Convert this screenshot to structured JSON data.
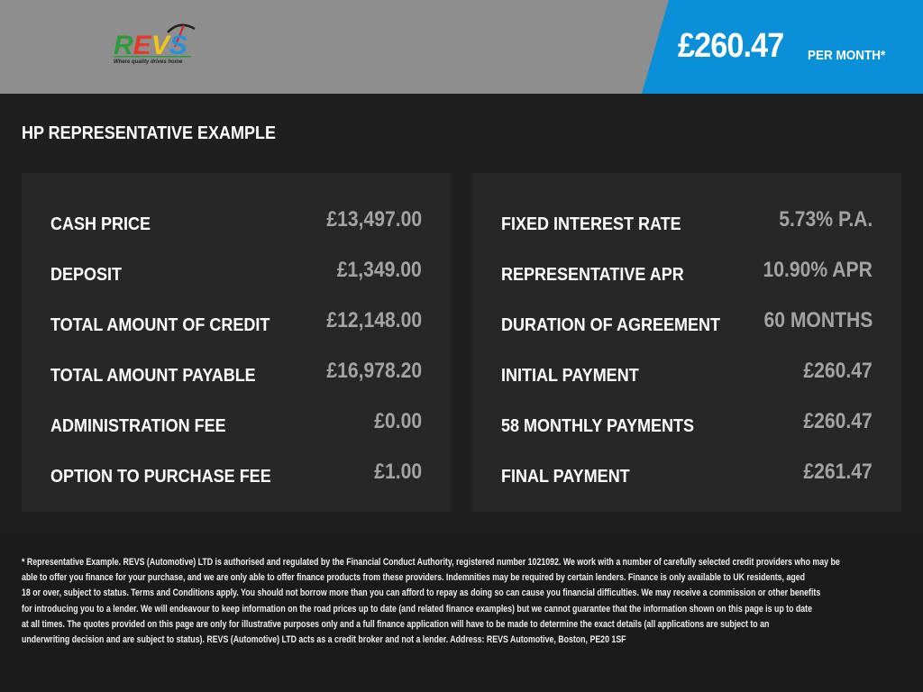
{
  "header": {
    "logo_text": "REVS",
    "logo_tagline": "Where quality drives home",
    "monthly_price": "£260.47",
    "per_month": "PER MONTH*",
    "accent": "#0a8fd9"
  },
  "title": "HP REPRESENTATIVE EXAMPLE",
  "left": [
    {
      "label": "CASH PRICE",
      "value": "£13,497.00"
    },
    {
      "label": "DEPOSIT",
      "value": "£1,349.00"
    },
    {
      "label": "TOTAL AMOUNT OF CREDIT",
      "value": "£12,148.00"
    },
    {
      "label": "TOTAL AMOUNT PAYABLE",
      "value": "£16,978.20"
    },
    {
      "label": "ADMINISTRATION FEE",
      "value": "£0.00"
    },
    {
      "label": "OPTION TO PURCHASE FEE",
      "value": "£1.00"
    }
  ],
  "right": [
    {
      "label": "FIXED INTEREST RATE",
      "value": "5.73% P.A."
    },
    {
      "label": "REPRESENTATIVE APR",
      "value": "10.90% APR"
    },
    {
      "label": "DURATION OF AGREEMENT",
      "value": "60 MONTHS"
    },
    {
      "label": "INITIAL PAYMENT",
      "value": "£260.47"
    },
    {
      "label": "58 MONTHLY PAYMENTS",
      "value": "£260.47"
    },
    {
      "label": "FINAL PAYMENT",
      "value": "£261.47"
    }
  ],
  "disclaimer": [
    "* Representative Example. REVS (Automotive) LTD is authorised and regulated by the Financial Conduct Authority, registered number 1021092. We work with a number of carefully selected credit providers who may be",
    "able to offer you finance for your purchase, and we are only able to offer finance products from these providers. Indemnities may be required by certain lenders. Finance is only available to UK residents, aged",
    "18 or over, subject to status. Terms and Conditions apply. You should not borrow more than you can afford to repay as doing so can cause you financial difficulties. We may receive a commission or other benefits",
    "for introducing you to a lender. We will endeavour to keep information on the road prices up to date (and related finance examples) but we cannot guarantee that the information shown on this page is up to date",
    "at all times. The quotes provided on this page are only for illustrative purposes only and a full finance application will have to be made to determine the exact details (all applications are subject to an",
    "underwriting decision and are subject to status). REVS (Automotive) LTD acts as a credit broker and not a lender. Address: REVS Automotive, Boston, PE20 1SF"
  ]
}
